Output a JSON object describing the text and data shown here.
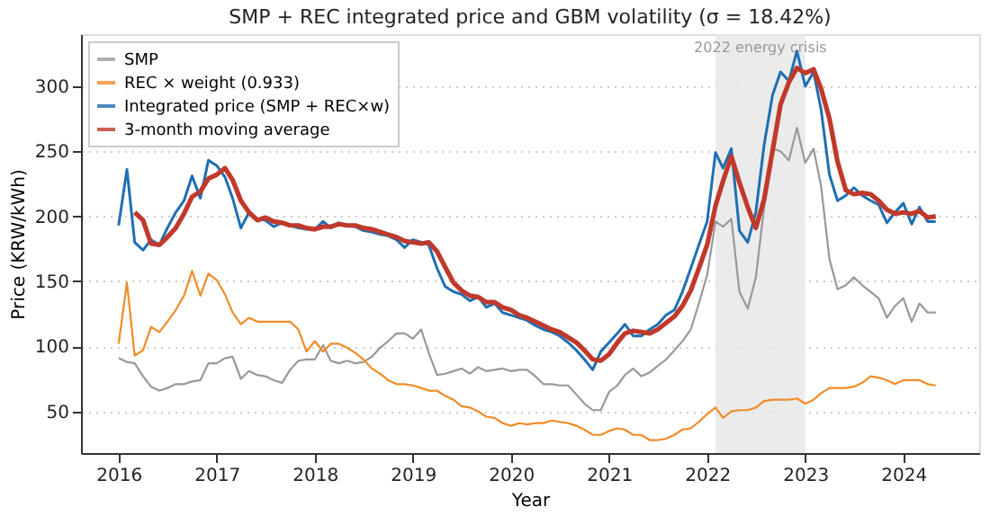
{
  "chart_data": {
    "type": "line",
    "title": "SMP + REC integrated price and GBM volatility (σ = 18.42%)",
    "xlabel": "Year",
    "ylabel": "Price (KRW/kWh)",
    "x": [
      "2016-01",
      "2016-02",
      "2016-03",
      "2016-04",
      "2016-05",
      "2016-06",
      "2016-07",
      "2016-08",
      "2016-09",
      "2016-10",
      "2016-11",
      "2016-12",
      "2017-01",
      "2017-02",
      "2017-03",
      "2017-04",
      "2017-05",
      "2017-06",
      "2017-07",
      "2017-08",
      "2017-09",
      "2017-10",
      "2017-11",
      "2017-12",
      "2018-01",
      "2018-02",
      "2018-03",
      "2018-04",
      "2018-05",
      "2018-06",
      "2018-07",
      "2018-08",
      "2018-09",
      "2018-10",
      "2018-11",
      "2018-12",
      "2019-01",
      "2019-02",
      "2019-03",
      "2019-04",
      "2019-05",
      "2019-06",
      "2019-07",
      "2019-08",
      "2019-09",
      "2019-10",
      "2019-11",
      "2019-12",
      "2020-01",
      "2020-02",
      "2020-03",
      "2020-04",
      "2020-05",
      "2020-06",
      "2020-07",
      "2020-08",
      "2020-09",
      "2020-10",
      "2020-11",
      "2020-12",
      "2021-01",
      "2021-02",
      "2021-03",
      "2021-04",
      "2021-05",
      "2021-06",
      "2021-07",
      "2021-08",
      "2021-09",
      "2021-10",
      "2021-11",
      "2021-12",
      "2022-01",
      "2022-02",
      "2022-03",
      "2022-04",
      "2022-05",
      "2022-06",
      "2022-07",
      "2022-08",
      "2022-09",
      "2022-10",
      "2022-11",
      "2022-12",
      "2023-01",
      "2023-02",
      "2023-03",
      "2023-04",
      "2023-05",
      "2023-06",
      "2023-07",
      "2023-08",
      "2023-09",
      "2023-10",
      "2023-11",
      "2023-12",
      "2024-01",
      "2024-02",
      "2024-03",
      "2024-04",
      "2024-05"
    ],
    "series": [
      {
        "name": "SMP",
        "color": "#999999",
        "values": [
          91,
          88,
          87,
          77,
          69,
          66,
          68,
          71,
          71,
          73,
          74,
          87,
          87,
          91,
          92,
          75,
          81,
          78,
          77,
          74,
          72,
          82,
          89,
          90,
          90,
          101,
          89,
          87,
          89,
          87,
          88,
          92,
          99,
          104,
          110,
          110,
          106,
          113,
          95,
          78,
          79,
          81,
          83,
          79,
          84,
          81,
          82,
          83,
          81,
          82,
          82,
          77,
          71,
          71,
          70,
          70,
          63,
          56,
          51,
          51,
          65,
          70,
          78,
          83,
          77,
          80,
          85,
          90,
          97,
          104,
          113,
          133,
          155,
          196,
          192,
          198,
          142,
          129,
          153,
          207,
          252,
          250,
          243,
          268,
          241,
          252,
          223,
          167,
          144,
          147,
          153,
          147,
          142,
          137,
          122,
          131,
          137,
          119,
          133,
          126,
          126
        ]
      },
      {
        "name": "REC × weight (0.933)",
        "color": "#f08c28",
        "values": [
          102,
          149,
          93,
          97,
          115,
          111,
          119,
          128,
          139,
          158,
          139,
          156,
          151,
          140,
          126,
          117,
          122,
          119,
          119,
          119,
          119,
          119,
          113,
          96,
          104,
          96,
          102,
          102,
          99,
          95,
          90,
          83,
          79,
          74,
          71,
          71,
          70,
          68,
          66,
          66,
          62,
          59,
          54,
          53,
          50,
          46,
          45,
          41,
          39,
          41,
          40,
          41,
          41,
          43,
          42,
          41,
          39,
          36,
          32,
          32,
          35,
          37,
          36,
          32,
          32,
          28,
          28,
          29,
          32,
          36,
          37,
          42,
          48,
          53,
          45,
          50,
          51,
          51,
          53,
          58,
          59,
          59,
          59,
          60,
          56,
          59,
          64,
          68,
          68,
          68,
          69,
          72,
          77,
          76,
          74,
          71,
          74,
          74,
          74,
          71,
          70
        ]
      },
      {
        "name": "Integrated price (SMP + REC×w)",
        "color": "#1f6fb4",
        "values": [
          193,
          236,
          180,
          174,
          182,
          178,
          191,
          203,
          212,
          231,
          214,
          243,
          239,
          230,
          214,
          191,
          203,
          198,
          197,
          192,
          195,
          193,
          191,
          190,
          190,
          196,
          191,
          195,
          193,
          192,
          189,
          188,
          186,
          185,
          182,
          176,
          182,
          180,
          178,
          160,
          146,
          142,
          140,
          135,
          138,
          130,
          133,
          126,
          124,
          122,
          120,
          116,
          113,
          111,
          108,
          103,
          97,
          90,
          82,
          96,
          103,
          110,
          117,
          108,
          108,
          113,
          117,
          124,
          128,
          142,
          160,
          178,
          196,
          249,
          237,
          252,
          189,
          180,
          203,
          255,
          293,
          311,
          304,
          327,
          300,
          311,
          282,
          232,
          212,
          216,
          222,
          216,
          212,
          209,
          195,
          203,
          210,
          194,
          207,
          196,
          196
        ]
      },
      {
        "name": "3-month moving average",
        "color": "#c0392b",
        "values": [
          null,
          null,
          203,
          197,
          179,
          178,
          184,
          191,
          202,
          215,
          219,
          229,
          232,
          237,
          228,
          212,
          203,
          197,
          199,
          196,
          195,
          193,
          193,
          191,
          190,
          192,
          192,
          194,
          193,
          193,
          191,
          190,
          188,
          186,
          184,
          181,
          180,
          179,
          180,
          173,
          161,
          149,
          143,
          139,
          138,
          134,
          134,
          130,
          128,
          124,
          122,
          119,
          116,
          113,
          111,
          107,
          103,
          97,
          90,
          89,
          94,
          103,
          110,
          112,
          111,
          110,
          113,
          118,
          123,
          131,
          143,
          160,
          178,
          208,
          227,
          246,
          226,
          207,
          191,
          213,
          250,
          286,
          303,
          314,
          310,
          313,
          298,
          275,
          242,
          220,
          217,
          218,
          217,
          212,
          205,
          202,
          203,
          202,
          204,
          199,
          200
        ]
      }
    ],
    "xlim": [
      "2015-08-14",
      "2024-10-10"
    ],
    "xticks": [
      "2016",
      "2017",
      "2018",
      "2019",
      "2020",
      "2021",
      "2022",
      "2023",
      "2024"
    ],
    "ylim": [
      18,
      340
    ],
    "yticks": [
      50,
      100,
      150,
      200,
      250,
      300
    ],
    "bands": [
      {
        "axis": "x",
        "from": "2022-02-01",
        "to": "2023-01-01",
        "label": "2022 energy crisis",
        "color": "#e6e6e6"
      }
    ],
    "grid": "y",
    "legend": "top left",
    "line_style": "solid",
    "marker": "none"
  }
}
